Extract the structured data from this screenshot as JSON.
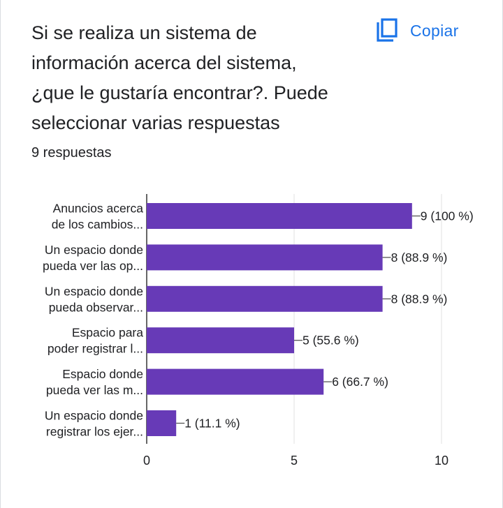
{
  "question": {
    "title": "Si se realiza un sistema de\ninformación acerca del sistema,\n¿que le gustaría encontrar?. Puede\nseleccionar varias respuestas",
    "copy_label": "Copiar",
    "responses": "9 respuestas"
  },
  "colors": {
    "bar": "#673ab7",
    "accent": "#1a73e8",
    "text": "#202124",
    "grid": "#e0e0e0",
    "axis": "#333333"
  },
  "icons": {
    "copy": "copy-icon"
  },
  "chart_data": {
    "type": "bar",
    "orientation": "horizontal",
    "categories": [
      [
        "Anuncios acerca",
        "de los cambios..."
      ],
      [
        "Un espacio donde",
        "pueda ver las op..."
      ],
      [
        "Un espacio donde",
        "pueda observar..."
      ],
      [
        "Espacio para",
        "poder registrar l..."
      ],
      [
        "Espacio donde",
        "pueda ver las m..."
      ],
      [
        "Un espacio donde",
        "registrar los ejer..."
      ]
    ],
    "values": [
      9,
      8,
      8,
      5,
      6,
      1
    ],
    "data_labels": [
      "9 (100 %)",
      "8 (88.9 %)",
      "8 (88.9 %)",
      "5 (55.6 %)",
      "6 (66.7 %)",
      "1 (11.1 %)"
    ],
    "xlim": [
      0,
      10
    ],
    "xticks": [
      "0",
      "5",
      "10"
    ],
    "grid": true,
    "title": "",
    "xlabel": "",
    "ylabel": ""
  }
}
